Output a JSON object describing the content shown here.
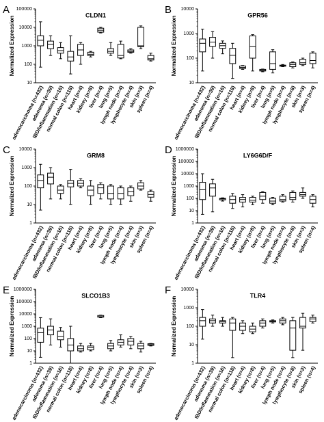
{
  "chart_data": [
    {
      "type": "box",
      "label": "A",
      "title": "CLDN1",
      "ylabel": "Normalized Expression",
      "log": true,
      "ylim": [
        10,
        100000
      ],
      "yticks": [
        10,
        100,
        1000,
        10000,
        100000
      ],
      "categories": [
        "adenocarcinoma (n=432)",
        "adenoma (n=39)",
        "IBD/inflammation (n=16)",
        "normal colon (n=118)",
        "heart (n=4)",
        "kidney (n=8)",
        "liver (n=4)",
        "lung (n=5)",
        "lymph node (n=4)",
        "lymphocyte (n=4)",
        "skin (n=3)",
        "spleen (n=4)"
      ],
      "boxes": [
        [
          70,
          1000,
          2000,
          3500,
          20000
        ],
        [
          300,
          700,
          1200,
          1800,
          3500
        ],
        [
          200,
          400,
          550,
          800,
          1500
        ],
        [
          30,
          150,
          250,
          500,
          3500
        ],
        [
          100,
          300,
          600,
          1200,
          1500
        ],
        [
          250,
          300,
          350,
          450,
          500
        ],
        [
          5000,
          5500,
          7000,
          9000,
          10000
        ],
        [
          300,
          400,
          500,
          700,
          1500
        ],
        [
          200,
          220,
          300,
          1200,
          1800
        ],
        [
          400,
          450,
          500,
          600,
          700
        ],
        [
          700,
          900,
          1000,
          10000,
          12000
        ],
        [
          150,
          170,
          200,
          300,
          400
        ]
      ]
    },
    {
      "type": "box",
      "label": "B",
      "title": "GPR56",
      "ylabel": "Normalized Expression",
      "log": true,
      "ylim": [
        10,
        10000
      ],
      "yticks": [
        10,
        100,
        1000,
        10000
      ],
      "categories": [
        "adenocarcinoma (n=432)",
        "adenoma (n=39)",
        "IBD/inflammation (n=16)",
        "normal colon (n=118)",
        "heart (n=4)",
        "kidney (n=8)",
        "liver (n=4)",
        "lung (n=5)",
        "lymph node (n=4)",
        "lymphocyte (n=8)",
        "skin (n=3)",
        "spleen (n=4)"
      ],
      "boxes": [
        [
          30,
          180,
          400,
          600,
          1500
        ],
        [
          100,
          300,
          450,
          700,
          1200
        ],
        [
          150,
          250,
          320,
          400,
          500
        ],
        [
          15,
          60,
          130,
          250,
          400
        ],
        [
          35,
          38,
          42,
          48,
          50
        ],
        [
          30,
          100,
          300,
          800,
          900
        ],
        [
          28,
          30,
          32,
          35,
          36
        ],
        [
          25,
          35,
          60,
          180,
          220
        ],
        [
          45,
          47,
          50,
          52,
          55
        ],
        [
          40,
          45,
          55,
          65,
          70
        ],
        [
          50,
          55,
          65,
          90,
          100
        ],
        [
          40,
          60,
          80,
          160,
          180
        ]
      ]
    },
    {
      "type": "box",
      "label": "C",
      "title": "GRM8",
      "ylabel": "Normalized Expression",
      "log": true,
      "ylim": [
        1,
        10000
      ],
      "yticks": [
        1,
        10,
        100,
        1000,
        10000
      ],
      "categories": [
        "adenocarcinoma (n=432)",
        "adenoma (n=39)",
        "IBD/inflammation (n=16)",
        "normal colon (n=118)",
        "heart (n=4)",
        "kidney (n=8)",
        "liver (n=4)",
        "lung (n=5)",
        "lymph node (n=4)",
        "lymphocyte (n=4)",
        "skin (n=3)",
        "spleen (n=4)"
      ],
      "boxes": [
        [
          5,
          80,
          200,
          400,
          1500
        ],
        [
          20,
          130,
          300,
          500,
          1000
        ],
        [
          20,
          40,
          60,
          100,
          120
        ],
        [
          10,
          90,
          140,
          200,
          800
        ],
        [
          80,
          100,
          140,
          200,
          250
        ],
        [
          10,
          30,
          60,
          100,
          200
        ],
        [
          20,
          40,
          80,
          120,
          150
        ],
        [
          10,
          20,
          40,
          100,
          120
        ],
        [
          10,
          20,
          40,
          80,
          100
        ],
        [
          15,
          30,
          50,
          80,
          100
        ],
        [
          60,
          70,
          100,
          150,
          200
        ],
        [
          15,
          25,
          35,
          50,
          60
        ]
      ]
    },
    {
      "type": "box",
      "label": "D",
      "title": "LY6G6D/F",
      "ylabel": "Normalized Expression",
      "log": true,
      "ylim": [
        1,
        1000000
      ],
      "yticks": [
        1,
        10,
        100,
        1000,
        10000,
        100000,
        1000000
      ],
      "categories": [
        "adenocarcinoma (n=432)",
        "adenoma (n=39)",
        "IBD/inflammation (n=16)",
        "normal colon (n=118)",
        "heart (n=4)",
        "kidney (n=8)",
        "liver (n=4)",
        "lung (n=5)",
        "lymph node (n=4)",
        "lymphocyte (n=8)",
        "skin (n=3)",
        "spleen (n=4)"
      ],
      "boxes": [
        [
          5,
          80,
          500,
          2000,
          10000
        ],
        [
          8,
          150,
          700,
          1500,
          3500
        ],
        [
          60,
          75,
          90,
          100,
          110
        ],
        [
          15,
          40,
          80,
          150,
          250
        ],
        [
          20,
          50,
          80,
          120,
          200
        ],
        [
          30,
          50,
          70,
          120,
          150
        ],
        [
          40,
          80,
          150,
          300,
          350
        ],
        [
          30,
          40,
          60,
          100,
          120
        ],
        [
          50,
          60,
          80,
          150,
          200
        ],
        [
          50,
          80,
          120,
          300,
          400
        ],
        [
          100,
          150,
          200,
          300,
          700
        ],
        [
          20,
          40,
          80,
          150,
          200
        ]
      ]
    },
    {
      "type": "box",
      "label": "E",
      "title": "SLCO1B3",
      "ylabel": "Normalized Expression",
      "log": true,
      "ylim": [
        1,
        1000000
      ],
      "yticks": [
        1,
        10,
        100,
        1000,
        10000,
        100000,
        1000000
      ],
      "categories": [
        "adenocarcinoma (n=432)",
        "adenoma (n=39)",
        "IBD/inflammation (n=16)",
        "normal colon (n=118)",
        "heart (n=4)",
        "kidney (n=8)",
        "liver (n=4)",
        "lung (n=5)",
        "lymph node (n=4)",
        "lymphocyte (n=4)",
        "skin (n=3)",
        "spleen (n=4)"
      ],
      "boxes": [
        [
          3,
          50,
          300,
          700,
          5000
        ],
        [
          30,
          200,
          500,
          1000,
          4000
        ],
        [
          20,
          80,
          150,
          400,
          800
        ],
        [
          1,
          10,
          30,
          100,
          1000
        ],
        [
          8,
          10,
          15,
          25,
          40
        ],
        [
          10,
          12,
          18,
          25,
          40
        ],
        [
          5000,
          5500,
          6000,
          7500,
          8000
        ],
        [
          10,
          15,
          25,
          40,
          70
        ],
        [
          20,
          30,
          50,
          80,
          200
        ],
        [
          15,
          30,
          60,
          100,
          150
        ],
        [
          8,
          15,
          25,
          40,
          60
        ],
        [
          25,
          28,
          32,
          38,
          40
        ]
      ]
    },
    {
      "type": "box",
      "label": "F",
      "title": "TLR4",
      "ylabel": "Normalized Expression",
      "log": true,
      "ylim": [
        1,
        10000
      ],
      "yticks": [
        1,
        10,
        100,
        1000,
        10000
      ],
      "categories": [
        "adenocarcinoma (n=432)",
        "adenoma (n=39)",
        "IBD/inflammation (n=16)",
        "normal colon (n=118)",
        "heart (n=4)",
        "kidney (n=8)",
        "liver (n=4)",
        "lung (n=5)",
        "lymph node (n=4)",
        "lymphocyte (n=8)",
        "skin (n=3)",
        "spleen (n=4)"
      ],
      "boxes": [
        [
          20,
          100,
          200,
          300,
          800
        ],
        [
          100,
          150,
          200,
          250,
          400
        ],
        [
          100,
          150,
          180,
          200,
          300
        ],
        [
          2,
          60,
          150,
          250,
          300
        ],
        [
          40,
          60,
          100,
          150,
          200
        ],
        [
          40,
          50,
          70,
          100,
          150
        ],
        [
          80,
          100,
          150,
          200,
          250
        ],
        [
          150,
          170,
          180,
          200,
          220
        ],
        [
          120,
          150,
          200,
          250,
          300
        ],
        [
          2,
          5,
          80,
          200,
          300
        ],
        [
          5,
          80,
          100,
          300,
          500
        ],
        [
          150,
          180,
          250,
          300,
          400
        ]
      ]
    }
  ]
}
